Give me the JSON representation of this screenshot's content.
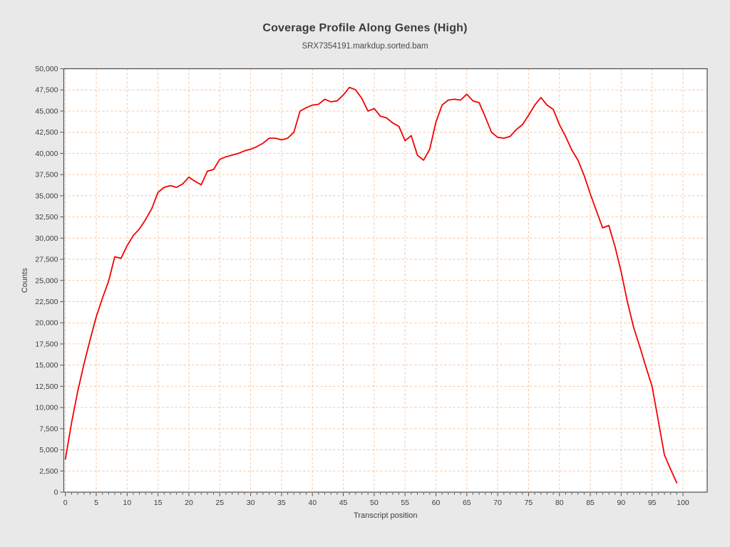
{
  "figure": {
    "title": "Coverage Profile Along Genes (High)",
    "subtitle": "SRX7354191.markdup.sorted.bam"
  },
  "colors": {
    "background": "#e9e9e9",
    "plot_background": "#ffffff",
    "line": "#f40000",
    "grid": "#f6c39b",
    "border": "#4d4d4d",
    "text": "#3d3d3d"
  },
  "chart_data": {
    "type": "line",
    "title": "Coverage Profile Along Genes (High)",
    "subtitle": "SRX7354191.markdup.sorted.bam",
    "xlabel": "Transcript position",
    "ylabel": "Counts",
    "xlim": [
      0,
      100
    ],
    "ylim": [
      0,
      50000
    ],
    "x_ticks": [
      0,
      5,
      10,
      15,
      20,
      25,
      30,
      35,
      40,
      45,
      50,
      55,
      60,
      65,
      70,
      75,
      80,
      85,
      90,
      95,
      100
    ],
    "y_ticks": [
      0,
      2500,
      5000,
      7500,
      10000,
      12500,
      15000,
      17500,
      20000,
      22500,
      25000,
      27500,
      30000,
      32500,
      35000,
      37500,
      40000,
      42500,
      45000,
      47500,
      50000
    ],
    "grid": "dashed",
    "legend": "none",
    "series": [
      {
        "name": "SRX7354191.markdup.sorted.bam",
        "x": [
          0,
          1,
          2,
          3,
          4,
          5,
          6,
          7,
          8,
          9,
          10,
          11,
          12,
          13,
          14,
          15,
          16,
          17,
          18,
          19,
          20,
          21,
          22,
          23,
          24,
          25,
          26,
          27,
          28,
          29,
          30,
          31,
          32,
          33,
          34,
          35,
          36,
          37,
          38,
          39,
          40,
          41,
          42,
          43,
          44,
          45,
          46,
          47,
          48,
          49,
          50,
          51,
          52,
          53,
          54,
          55,
          56,
          57,
          58,
          59,
          60,
          61,
          62,
          63,
          64,
          65,
          66,
          67,
          68,
          69,
          70,
          71,
          72,
          73,
          74,
          75,
          76,
          77,
          78,
          79,
          80,
          81,
          82,
          83,
          84,
          85,
          86,
          87,
          88,
          89,
          90,
          91,
          92,
          93,
          94,
          95,
          96,
          97,
          98,
          99
        ],
        "values": [
          3900,
          8200,
          11900,
          15100,
          18000,
          20700,
          22900,
          24900,
          27800,
          27600,
          29100,
          30300,
          31100,
          32200,
          33500,
          35400,
          36000,
          36200,
          36000,
          36400,
          37200,
          36700,
          36300,
          37900,
          38100,
          39300,
          39600,
          39800,
          40000,
          40300,
          40500,
          40800,
          41200,
          41800,
          41800,
          41600,
          41800,
          42500,
          45000,
          45400,
          45700,
          45800,
          46400,
          46100,
          46200,
          46900,
          47800,
          47500,
          46500,
          45000,
          45300,
          44400,
          44200,
          43600,
          43200,
          41500,
          42100,
          39800,
          39200,
          40500,
          43700,
          45700,
          46300,
          46400,
          46300,
          47000,
          46200,
          46000,
          44300,
          42500,
          41900,
          41800,
          42000,
          42800,
          43400,
          44500,
          45700,
          46600,
          45700,
          45200,
          43400,
          42000,
          40400,
          39200,
          37400,
          35200,
          33200,
          31200,
          31500,
          29000,
          26000,
          22500,
          19500,
          17200,
          14800,
          12500,
          8500,
          4400,
          2700,
          1100
        ]
      }
    ]
  }
}
